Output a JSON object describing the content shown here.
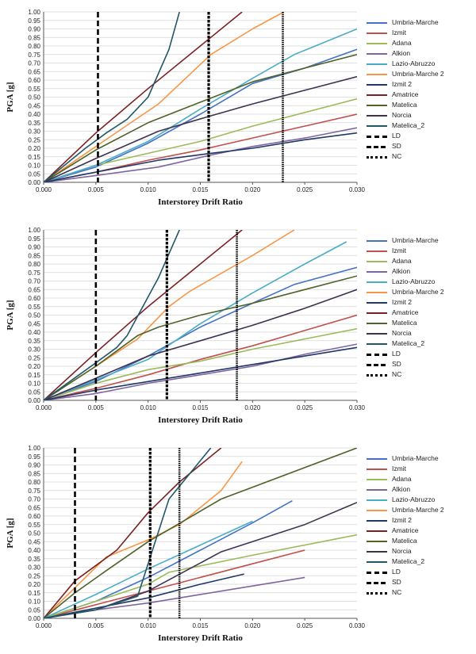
{
  "chart_data": [
    {
      "type": "line",
      "xlabel": "Interstorey Drift Ratio",
      "ylabel": "PGA [g]",
      "xlim": [
        0,
        0.03
      ],
      "ylim": [
        0,
        1.0
      ],
      "xticks": [
        "0.000",
        "0.005",
        "0.010",
        "0.015",
        "0.020",
        "0.025",
        "0.030"
      ],
      "yticks": [
        "0.00",
        "0.05",
        "0.10",
        "0.15",
        "0.20",
        "0.25",
        "0.30",
        "0.35",
        "0.40",
        "0.45",
        "0.50",
        "0.55",
        "0.60",
        "0.65",
        "0.70",
        "0.75",
        "0.80",
        "0.85",
        "0.90",
        "0.95",
        "1.00"
      ],
      "grid": "horizontal",
      "legend_position": "right",
      "series": [
        {
          "name": "Umbria-Marche",
          "color": "#4472c4",
          "x": [
            0,
            0.005,
            0.01,
            0.015,
            0.02,
            0.025,
            0.03
          ],
          "y": [
            0,
            0.09,
            0.23,
            0.4,
            0.58,
            0.67,
            0.78
          ]
        },
        {
          "name": "Izmit",
          "color": "#c0504d",
          "x": [
            0,
            0.005,
            0.01,
            0.015,
            0.02,
            0.025,
            0.03
          ],
          "y": [
            0,
            0.06,
            0.13,
            0.19,
            0.26,
            0.33,
            0.4
          ]
        },
        {
          "name": "Adana",
          "color": "#9bbb59",
          "x": [
            0,
            0.005,
            0.01,
            0.015,
            0.02,
            0.025,
            0.03
          ],
          "y": [
            0,
            0.1,
            0.17,
            0.24,
            0.33,
            0.41,
            0.49
          ]
        },
        {
          "name": "Alkion",
          "color": "#8064a2",
          "x": [
            0,
            0.005,
            0.011,
            0.016,
            0.02,
            0.025,
            0.03
          ],
          "y": [
            0,
            0.04,
            0.09,
            0.16,
            0.21,
            0.26,
            0.32
          ]
        },
        {
          "name": "Lazio-Abruzzo",
          "color": "#4bacc6",
          "x": [
            0,
            0.005,
            0.01,
            0.015,
            0.02,
            0.024,
            0.03
          ],
          "y": [
            0,
            0.1,
            0.24,
            0.43,
            0.61,
            0.75,
            0.9
          ]
        },
        {
          "name": "Umbria-Marche 2",
          "color": "#f79646",
          "x": [
            0,
            0.005,
            0.011,
            0.016,
            0.02,
            0.023
          ],
          "y": [
            0,
            0.21,
            0.46,
            0.75,
            0.9,
            1.0
          ]
        },
        {
          "name": "Izmit 2",
          "color": "#1f3864",
          "x": [
            0,
            0.005,
            0.011,
            0.016,
            0.02,
            0.025,
            0.03
          ],
          "y": [
            0,
            0.06,
            0.13,
            0.17,
            0.2,
            0.25,
            0.29
          ]
        },
        {
          "name": "Amatrice",
          "color": "#7b2125",
          "x": [
            0,
            0.005,
            0.01,
            0.015,
            0.019
          ],
          "y": [
            0,
            0.29,
            0.55,
            0.8,
            1.0
          ]
        },
        {
          "name": "Matelica",
          "color": "#4f6228",
          "x": [
            0,
            0.005,
            0.01,
            0.015,
            0.02,
            0.025,
            0.03
          ],
          "y": [
            0,
            0.19,
            0.35,
            0.47,
            0.59,
            0.67,
            0.75
          ]
        },
        {
          "name": "Norcia",
          "color": "#3f3151",
          "x": [
            0,
            0.005,
            0.011,
            0.016,
            0.02,
            0.025,
            0.03
          ],
          "y": [
            0,
            0.14,
            0.3,
            0.39,
            0.46,
            0.54,
            0.62
          ]
        },
        {
          "name": "Matelica_2",
          "color": "#215868",
          "x": [
            0,
            0.004,
            0.006,
            0.008,
            0.01,
            0.012,
            0.013
          ],
          "y": [
            0,
            0.2,
            0.29,
            0.37,
            0.5,
            0.78,
            1.0
          ]
        }
      ],
      "limits": [
        {
          "name": "LD",
          "x": 0.0052,
          "style": "ld"
        },
        {
          "name": "SD",
          "x": 0.0158,
          "style": "sd"
        },
        {
          "name": "NC",
          "x": 0.0229,
          "style": "nc"
        }
      ]
    },
    {
      "type": "line",
      "xlabel": "Interstorey Drift Ratio",
      "ylabel": "PGA [g]",
      "xlim": [
        0,
        0.03
      ],
      "ylim": [
        0,
        1.0
      ],
      "xticks": [
        "0.000",
        "0.005",
        "0.010",
        "0.015",
        "0.020",
        "0.025",
        "0.030"
      ],
      "yticks": [
        "0.00",
        "0.05",
        "0.10",
        "0.15",
        "0.20",
        "0.25",
        "0.30",
        "0.35",
        "0.40",
        "0.45",
        "0.50",
        "0.55",
        "0.60",
        "0.65",
        "0.70",
        "0.75",
        "0.80",
        "0.85",
        "0.90",
        "0.95",
        "1.00"
      ],
      "grid": "horizontal",
      "legend_position": "right",
      "series": [
        {
          "name": "Umbria-Marche",
          "color": "#4472c4",
          "x": [
            0,
            0.005,
            0.01,
            0.015,
            0.02,
            0.024,
            0.03
          ],
          "y": [
            0,
            0.11,
            0.26,
            0.43,
            0.57,
            0.68,
            0.78
          ]
        },
        {
          "name": "Izmit",
          "color": "#c0504d",
          "x": [
            0,
            0.005,
            0.01,
            0.015,
            0.02,
            0.025,
            0.03
          ],
          "y": [
            0,
            0.07,
            0.15,
            0.24,
            0.32,
            0.41,
            0.5
          ]
        },
        {
          "name": "Adana",
          "color": "#9bbb59",
          "x": [
            0,
            0.005,
            0.01,
            0.015,
            0.02,
            0.025,
            0.03
          ],
          "y": [
            0,
            0.1,
            0.18,
            0.23,
            0.3,
            0.36,
            0.42
          ]
        },
        {
          "name": "Alkion",
          "color": "#8064a2",
          "x": [
            0,
            0.005,
            0.01,
            0.015,
            0.02,
            0.025,
            0.03
          ],
          "y": [
            0,
            0.04,
            0.1,
            0.15,
            0.2,
            0.27,
            0.33
          ]
        },
        {
          "name": "Lazio-Abruzzo",
          "color": "#4bacc6",
          "x": [
            0,
            0.005,
            0.01,
            0.015,
            0.02,
            0.025,
            0.029
          ],
          "y": [
            0,
            0.12,
            0.24,
            0.45,
            0.63,
            0.8,
            0.93
          ]
        },
        {
          "name": "Umbria-Marche 2",
          "color": "#f79646",
          "x": [
            0,
            0.005,
            0.009,
            0.012,
            0.014,
            0.02,
            0.024
          ],
          "y": [
            0,
            0.2,
            0.36,
            0.55,
            0.64,
            0.85,
            1.0
          ]
        },
        {
          "name": "Izmit 2",
          "color": "#1f3864",
          "x": [
            0,
            0.005,
            0.01,
            0.015,
            0.02,
            0.025,
            0.03
          ],
          "y": [
            0,
            0.06,
            0.11,
            0.16,
            0.21,
            0.26,
            0.31
          ]
        },
        {
          "name": "Amatrice",
          "color": "#7b2125",
          "x": [
            0,
            0.005,
            0.01,
            0.015,
            0.019
          ],
          "y": [
            0,
            0.28,
            0.55,
            0.8,
            1.0
          ]
        },
        {
          "name": "Matelica",
          "color": "#4f6228",
          "x": [
            0,
            0.005,
            0.009,
            0.011,
            0.015,
            0.02,
            0.03
          ],
          "y": [
            0,
            0.2,
            0.38,
            0.43,
            0.5,
            0.57,
            0.73
          ]
        },
        {
          "name": "Norcia",
          "color": "#3f3151",
          "x": [
            0,
            0.005,
            0.01,
            0.015,
            0.02,
            0.025,
            0.03
          ],
          "y": [
            0,
            0.13,
            0.26,
            0.35,
            0.44,
            0.54,
            0.65
          ]
        },
        {
          "name": "Matelica_2",
          "color": "#215868",
          "x": [
            0,
            0.005,
            0.007,
            0.008,
            0.011,
            0.013
          ],
          "y": [
            0,
            0.22,
            0.31,
            0.38,
            0.72,
            1.0
          ]
        }
      ],
      "limits": [
        {
          "name": "LD",
          "x": 0.005,
          "style": "ld"
        },
        {
          "name": "SD",
          "x": 0.0118,
          "style": "sd"
        },
        {
          "name": "NC",
          "x": 0.0185,
          "style": "nc"
        }
      ]
    },
    {
      "type": "line",
      "xlabel": "Interstorey Drift Ratio",
      "ylabel": "PGA [g]",
      "xlim": [
        0,
        0.03
      ],
      "ylim": [
        0,
        1.0
      ],
      "xticks": [
        "0.000",
        "0.005",
        "0.010",
        "0.015",
        "0.020",
        "0.025",
        "0.030"
      ],
      "yticks": [
        "0.00",
        "0.05",
        "0.10",
        "0.15",
        "0.20",
        "0.25",
        "0.30",
        "0.35",
        "0.40",
        "0.45",
        "0.50",
        "0.55",
        "0.60",
        "0.65",
        "0.70",
        "0.75",
        "0.80",
        "0.85",
        "0.90",
        "0.95",
        "1.00"
      ],
      "grid": "horizontal",
      "legend_position": "right",
      "series": [
        {
          "name": "Umbria-Marche",
          "color": "#4472c4",
          "x": [
            0,
            0.005,
            0.01,
            0.015,
            0.02,
            0.0238
          ],
          "y": [
            0,
            0.1,
            0.24,
            0.4,
            0.56,
            0.69
          ]
        },
        {
          "name": "Izmit",
          "color": "#c0504d",
          "x": [
            0,
            0.005,
            0.01,
            0.015,
            0.02,
            0.025
          ],
          "y": [
            0,
            0.08,
            0.16,
            0.24,
            0.32,
            0.4
          ]
        },
        {
          "name": "Adana",
          "color": "#9bbb59",
          "x": [
            0,
            0.005,
            0.01,
            0.012,
            0.02,
            0.03
          ],
          "y": [
            0,
            0.1,
            0.2,
            0.27,
            0.37,
            0.49
          ]
        },
        {
          "name": "Alkion",
          "color": "#8064a2",
          "x": [
            0,
            0.005,
            0.01,
            0.015,
            0.02,
            0.025
          ],
          "y": [
            0,
            0.05,
            0.09,
            0.14,
            0.19,
            0.24
          ]
        },
        {
          "name": "Lazio-Abruzzo",
          "color": "#4bacc6",
          "x": [
            0,
            0.005,
            0.01,
            0.015,
            0.02
          ],
          "y": [
            0,
            0.14,
            0.29,
            0.43,
            0.57
          ]
        },
        {
          "name": "Umbria-Marche 2",
          "color": "#f79646",
          "x": [
            0,
            0.003,
            0.006,
            0.01,
            0.013,
            0.017,
            0.019
          ],
          "y": [
            0,
            0.18,
            0.36,
            0.46,
            0.55,
            0.75,
            0.92
          ]
        },
        {
          "name": "Izmit 2",
          "color": "#1f3864",
          "x": [
            0,
            0.005,
            0.01,
            0.015,
            0.0192
          ],
          "y": [
            0,
            0.06,
            0.12,
            0.2,
            0.26
          ]
        },
        {
          "name": "Amatrice",
          "color": "#7b2125",
          "x": [
            0,
            0.003,
            0.007,
            0.01,
            0.013,
            0.017
          ],
          "y": [
            0,
            0.22,
            0.4,
            0.62,
            0.8,
            1.0
          ]
        },
        {
          "name": "Matelica",
          "color": "#4f6228",
          "x": [
            0,
            0.003,
            0.006,
            0.01,
            0.017,
            0.03
          ],
          "y": [
            0,
            0.15,
            0.28,
            0.45,
            0.7,
            1.0
          ]
        },
        {
          "name": "Norcia",
          "color": "#3f3151",
          "x": [
            0,
            0.005,
            0.01,
            0.017,
            0.025,
            0.03
          ],
          "y": [
            0,
            0.05,
            0.16,
            0.39,
            0.55,
            0.68
          ]
        },
        {
          "name": "Matelica_2",
          "color": "#215868",
          "x": [
            0,
            0.005,
            0.009,
            0.012,
            0.016
          ],
          "y": [
            0,
            0.05,
            0.13,
            0.7,
            1.0
          ]
        }
      ],
      "limits": [
        {
          "name": "LD",
          "x": 0.003,
          "style": "ld"
        },
        {
          "name": "SD",
          "x": 0.0102,
          "style": "sd"
        },
        {
          "name": "NC",
          "x": 0.013,
          "style": "nc"
        }
      ]
    }
  ]
}
